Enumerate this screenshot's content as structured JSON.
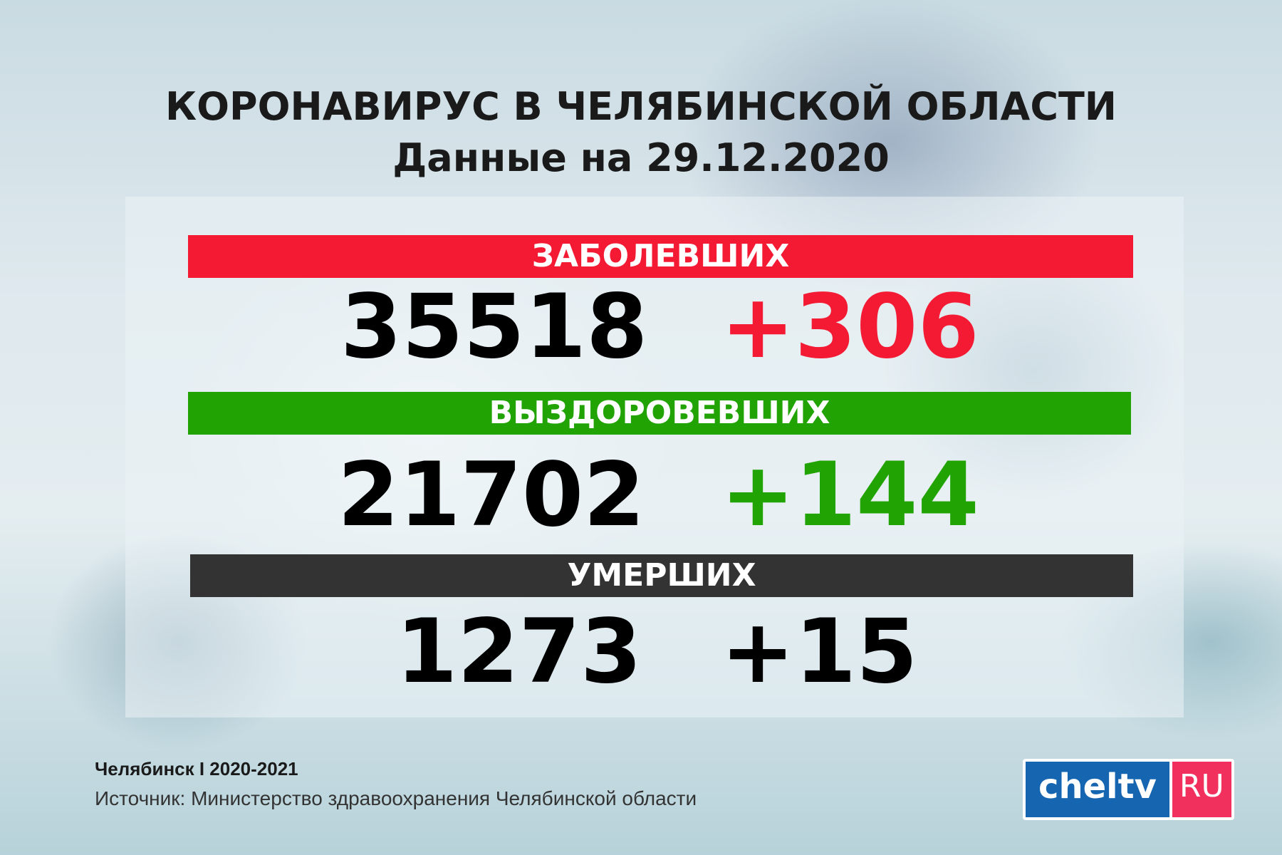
{
  "header": {
    "title": "КОРОНАВИРУС В ЧЕЛЯБИНСКОЙ ОБЛАСТИ",
    "subtitle": "Данные на 29.12.2020"
  },
  "stats": [
    {
      "label": "ЗАБОЛЕВШИХ",
      "total": "35518",
      "delta": "+306",
      "bar_color": "#f41a33",
      "delta_color": "#f41a33"
    },
    {
      "label": "ВЫЗДОРОВЕВШИХ",
      "total": "21702",
      "delta": "+144",
      "bar_color": "#20a303",
      "delta_color": "#20a303"
    },
    {
      "label": "УМЕРШИХ",
      "total": "1273",
      "delta": "+15",
      "bar_color": "#333333",
      "delta_color": "#000000"
    }
  ],
  "footer": {
    "place_years": "Челябинск I 2020-2021",
    "source": "Источник: Министерство здравоохранения Челябинской области"
  },
  "logo": {
    "main": "cheltv",
    "suffix": "RU"
  }
}
